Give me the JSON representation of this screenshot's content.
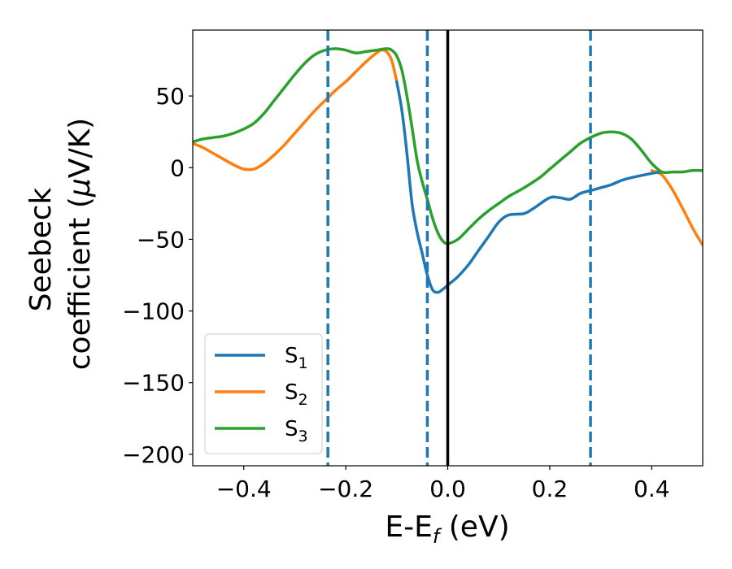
{
  "chart_data": {
    "type": "line",
    "title": "",
    "xlabel": {
      "main": "E-E",
      "sub": "f",
      "unit": " (eV)"
    },
    "ylabel": {
      "line1": "Seebeck",
      "line2_prefix": "coefficient  (",
      "mu": "μ",
      "line2_suffix": "V/K)"
    },
    "xlim": [
      -0.5,
      0.5
    ],
    "ylim": [
      -208,
      96
    ],
    "x_ticks": [
      -0.4,
      -0.2,
      0.0,
      0.2,
      0.4
    ],
    "x_tick_labels": [
      "−0.4",
      "−0.2",
      "0.0",
      "0.2",
      "0.4"
    ],
    "y_ticks": [
      50,
      0,
      -50,
      -100,
      -150,
      -200
    ],
    "y_tick_labels": [
      "50",
      "0",
      "−50",
      "−100",
      "−150",
      "−200"
    ],
    "grid": false,
    "legend_position": "lower-left",
    "vlines": [
      {
        "x": -0.235,
        "style": "dashed",
        "color": "#1f77b4"
      },
      {
        "x": -0.04,
        "style": "dashed",
        "color": "#1f77b4"
      },
      {
        "x": 0.0,
        "style": "solid",
        "color": "#000000"
      },
      {
        "x": 0.28,
        "style": "dashed",
        "color": "#1f77b4"
      }
    ],
    "series": [
      {
        "name": "S",
        "sub": "1",
        "color": "#1f77b4",
        "x": [
          -0.1,
          -0.09,
          -0.08,
          -0.07,
          -0.06,
          -0.05,
          -0.04,
          -0.03,
          -0.02,
          -0.01,
          0.0,
          0.02,
          0.04,
          0.06,
          0.08,
          0.1,
          0.12,
          0.15,
          0.17,
          0.2,
          0.22,
          0.24,
          0.26,
          0.28,
          0.3,
          0.32,
          0.34,
          0.36,
          0.4,
          0.42
        ],
        "y": [
          60,
          40,
          10,
          -25,
          -45,
          -60,
          -75,
          -85,
          -87,
          -85,
          -82,
          -76,
          -68,
          -58,
          -48,
          -38,
          -33,
          -32,
          -28,
          -21,
          -21,
          -22,
          -18,
          -16,
          -14,
          -12,
          -9,
          -7,
          -4,
          -3
        ]
      },
      {
        "name": "S",
        "sub": "2",
        "color": "#ff7f0e",
        "x": [
          -0.5,
          -0.48,
          -0.46,
          -0.44,
          -0.42,
          -0.4,
          -0.38,
          -0.36,
          -0.34,
          -0.32,
          -0.3,
          -0.28,
          -0.26,
          -0.24,
          -0.22,
          -0.2,
          -0.18,
          -0.16,
          -0.14,
          -0.13,
          -0.12,
          -0.11,
          -0.1,
          0.4,
          0.42,
          0.44,
          0.46,
          0.48,
          0.5
        ],
        "y": [
          17,
          14,
          10,
          6,
          2,
          -1,
          -1,
          3,
          9,
          16,
          24,
          32,
          40,
          47,
          54,
          60,
          67,
          74,
          80,
          82,
          81,
          75,
          60,
          -2,
          -5,
          -15,
          -28,
          -42,
          -54
        ]
      },
      {
        "name": "S",
        "sub": "3",
        "color": "#2ca02c",
        "x": [
          -0.5,
          -0.48,
          -0.46,
          -0.44,
          -0.42,
          -0.4,
          -0.38,
          -0.36,
          -0.34,
          -0.32,
          -0.3,
          -0.28,
          -0.26,
          -0.24,
          -0.22,
          -0.2,
          -0.18,
          -0.16,
          -0.14,
          -0.12,
          -0.11,
          -0.1,
          -0.09,
          -0.08,
          -0.07,
          -0.06,
          -0.05,
          -0.04,
          -0.03,
          -0.02,
          -0.01,
          0.0,
          0.02,
          0.04,
          0.06,
          0.08,
          0.1,
          0.12,
          0.15,
          0.18,
          0.2,
          0.22,
          0.24,
          0.26,
          0.28,
          0.3,
          0.32,
          0.34,
          0.36,
          0.38,
          0.4,
          0.42,
          0.44,
          0.46,
          0.48,
          0.5
        ],
        "y": [
          18,
          20,
          21,
          22,
          24,
          27,
          31,
          38,
          47,
          56,
          65,
          73,
          79,
          82,
          83,
          82,
          80,
          81,
          82,
          83,
          82,
          78,
          68,
          50,
          28,
          5,
          -10,
          -22,
          -35,
          -45,
          -51,
          -53,
          -50,
          -43,
          -36,
          -30,
          -25,
          -20,
          -14,
          -7,
          -1,
          5,
          11,
          17,
          21,
          24,
          25,
          24,
          20,
          12,
          3,
          -3,
          -3,
          -3,
          -2,
          -2
        ]
      }
    ]
  }
}
